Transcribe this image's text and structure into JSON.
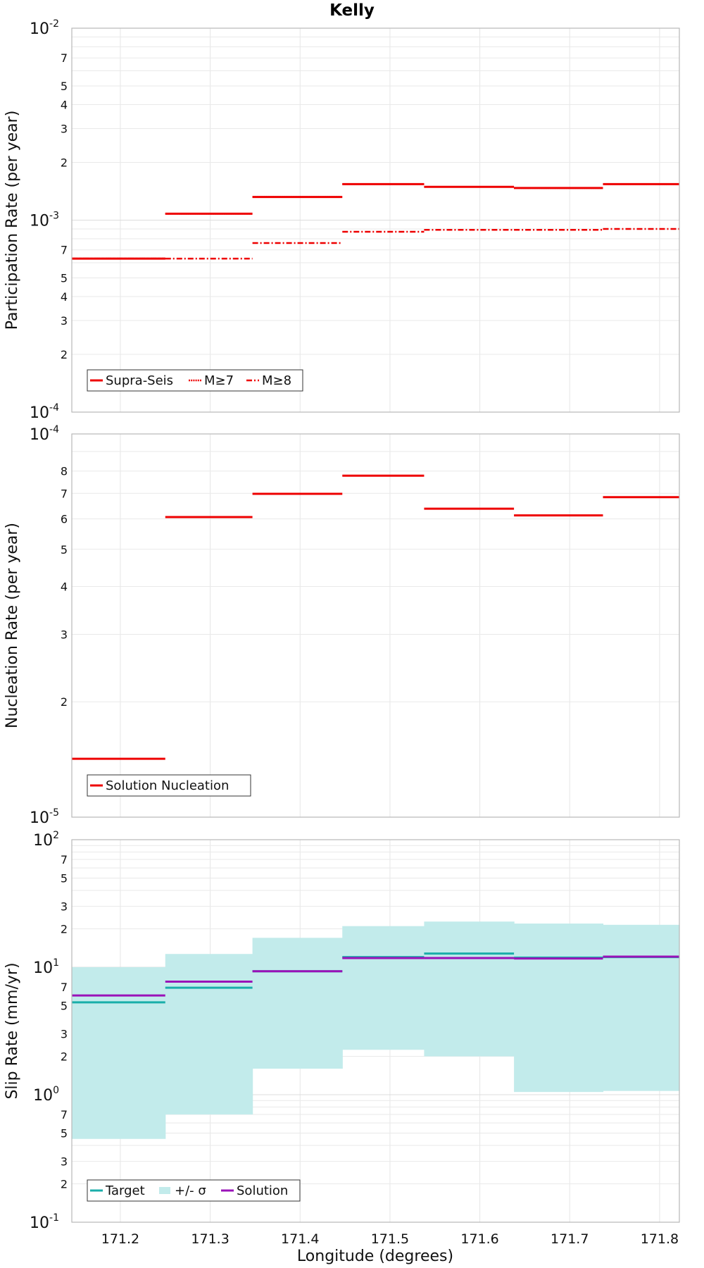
{
  "chart_data": {
    "title": "Kelly",
    "type": "line",
    "xlabel": "Longitude (degrees)",
    "xlim": [
      171.146,
      171.822
    ],
    "xticks": [
      171.2,
      171.3,
      171.4,
      171.5,
      171.6,
      171.7,
      171.8
    ],
    "xtick_labels": [
      "171.2",
      "171.3",
      "171.4",
      "171.5",
      "171.6",
      "171.7",
      "171.8"
    ],
    "x_edges": [
      171.146,
      171.25,
      171.347,
      171.447,
      171.538,
      171.638,
      171.737,
      171.822
    ],
    "panels": [
      {
        "ylabel": "Participation Rate (per year)",
        "yscale": "log",
        "ylim": [
          0.0001,
          0.01
        ],
        "minor_labels": [
          "2",
          "3",
          "4",
          "5",
          "7"
        ],
        "major_ticks": [
          {
            "base": "10",
            "exp": "-4"
          },
          {
            "base": "10",
            "exp": "-3"
          },
          {
            "base": "10",
            "exp": "-2"
          }
        ],
        "series": [
          {
            "name": "Supra-Seis",
            "style": "solid",
            "color": "#ee0000",
            "values": [
              0.00063,
              0.00108,
              0.00132,
              0.00154,
              0.00149,
              0.00147,
              0.00154
            ]
          },
          {
            "name": "M≥7",
            "style": "dotted",
            "color": "#ee0000",
            "values": [
              0.00063,
              0.00108,
              0.00132,
              0.00154,
              0.00149,
              0.00147,
              0.00154
            ]
          },
          {
            "name": "M≥8",
            "style": "dashdot",
            "color": "#ee0000",
            "values": [
              0.00063,
              0.00063,
              0.00076,
              0.00087,
              0.00089,
              0.00089,
              0.0009
            ]
          }
        ],
        "legend": [
          "Supra-Seis",
          "M≥7",
          "M≥8"
        ]
      },
      {
        "ylabel": "Nucleation Rate (per year)",
        "yscale": "log",
        "ylim": [
          1e-05,
          0.0001
        ],
        "minor_labels": [
          "2",
          "3",
          "4",
          "5",
          "6",
          "7",
          "8"
        ],
        "major_ticks": [
          {
            "base": "10",
            "exp": "-5"
          },
          {
            "base": "10",
            "exp": "-4"
          }
        ],
        "series": [
          {
            "name": "Solution Nucleation",
            "style": "solid",
            "color": "#ee0000",
            "values": [
              1.42e-05,
              6.07e-05,
              6.98e-05,
              7.78e-05,
              6.38e-05,
              6.13e-05,
              6.84e-05
            ]
          }
        ],
        "legend": [
          "Solution Nucleation"
        ]
      },
      {
        "ylabel": "Slip Rate (mm/yr)",
        "yscale": "log",
        "ylim": [
          0.1,
          100
        ],
        "minor_labels": [
          "2",
          "3",
          "5",
          "7"
        ],
        "major_ticks": [
          {
            "base": "10",
            "exp": "-1"
          },
          {
            "base": "10",
            "exp": "0"
          },
          {
            "base": "10",
            "exp": "1"
          },
          {
            "base": "10",
            "exp": "2"
          }
        ],
        "band": {
          "name": "+/- σ",
          "color": "#c2ebeb",
          "lower": [
            0.45,
            0.7,
            1.6,
            2.25,
            2.0,
            1.05,
            1.07
          ],
          "upper": [
            10.0,
            12.7,
            17.0,
            21.0,
            22.8,
            22.0,
            21.5
          ]
        },
        "series": [
          {
            "name": "Target",
            "style": "solid",
            "color": "#1aaeaa",
            "values": [
              5.3,
              6.9,
              9.3,
              12.0,
              12.8,
              11.9,
              12.0
            ]
          },
          {
            "name": "Solution",
            "style": "solid",
            "color": "#9a12b8",
            "values": [
              6.0,
              7.7,
              9.3,
              11.8,
              11.8,
              11.7,
              12.1
            ]
          }
        ],
        "legend": [
          "Target",
          "+/- σ",
          "Solution"
        ]
      }
    ]
  }
}
